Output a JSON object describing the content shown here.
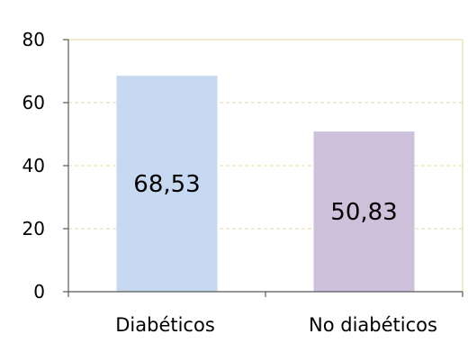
{
  "chart_data": {
    "type": "bar",
    "title": "",
    "xlabel": "",
    "ylabel": "",
    "categories": [
      "Diabéticos",
      "No diabéticos"
    ],
    "values": [
      68.53,
      50.83
    ],
    "value_labels": [
      "68,53",
      "50,83"
    ],
    "bar_colors": [
      "#c6d9f1",
      "#ccc0da"
    ],
    "ylim": [
      0,
      80
    ],
    "yticks": [
      0,
      20,
      40,
      60,
      80
    ],
    "ytick_labels": [
      "0",
      "20",
      "40",
      "60",
      "80"
    ],
    "grid": true,
    "grid_color": "#e8e4b8",
    "legend": "none"
  }
}
